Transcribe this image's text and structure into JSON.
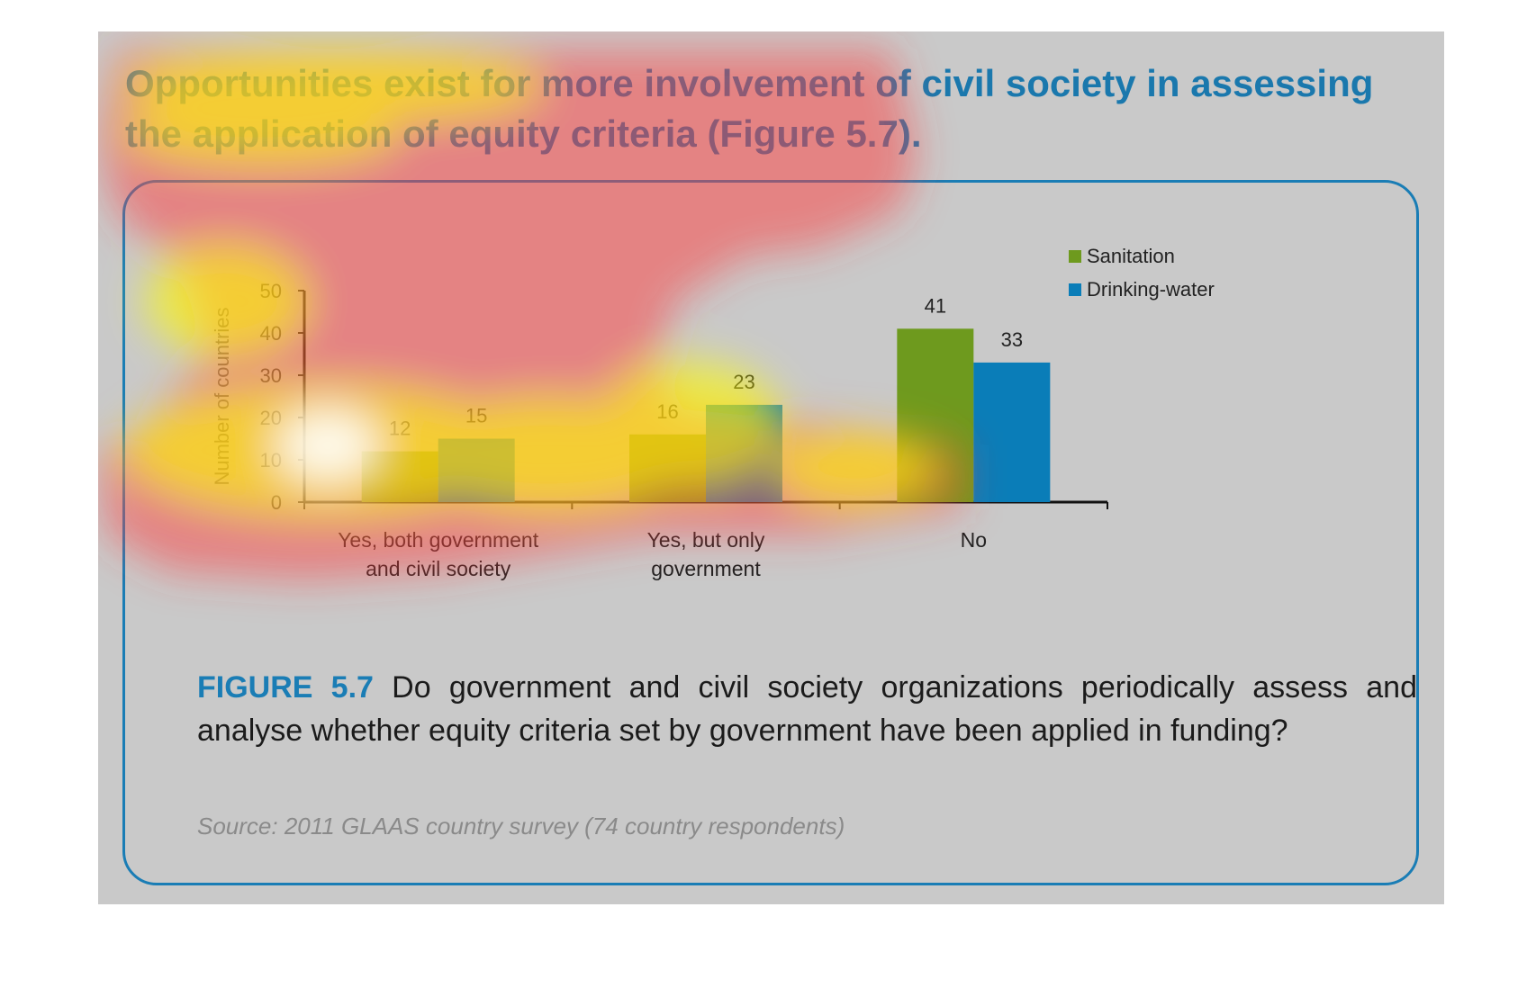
{
  "slide": {
    "headline": "Opportunities exist for more involvement of civil society in assessing the application of equity criteria (Figure 5.7).",
    "caption_label": "FIGURE 5.7",
    "caption_text": "Do government and civil society organizations periodically assess and analyse whether equity criteria set by government have been applied in funding?",
    "source": "Source: 2011 GLAAS country survey (74 country respondents)"
  },
  "chart_data": {
    "type": "bar",
    "categories": [
      "Yes, both government and civil society",
      "Yes, but only government",
      "No"
    ],
    "category_label_lines": [
      [
        "Yes, both government",
        "and civil society"
      ],
      [
        "Yes, but only",
        "government"
      ],
      [
        "No"
      ]
    ],
    "series": [
      {
        "name": "Sanitation",
        "values": [
          12,
          16,
          41
        ],
        "color": "#6e9a1e"
      },
      {
        "name": "Drinking-water",
        "values": [
          15,
          23,
          33
        ],
        "color": "#0a7db8"
      }
    ],
    "ylabel": "Number of countries",
    "xlabel": "",
    "ylim": [
      0,
      50
    ],
    "yticks": [
      0,
      10,
      20,
      30,
      40,
      50
    ],
    "grid": false,
    "legend_position": "top-right",
    "data_labels": true
  },
  "overlay": {
    "type": "attention-heatmap",
    "colors": [
      "#ffffff",
      "#ffff00",
      "#ff3b3b"
    ]
  }
}
